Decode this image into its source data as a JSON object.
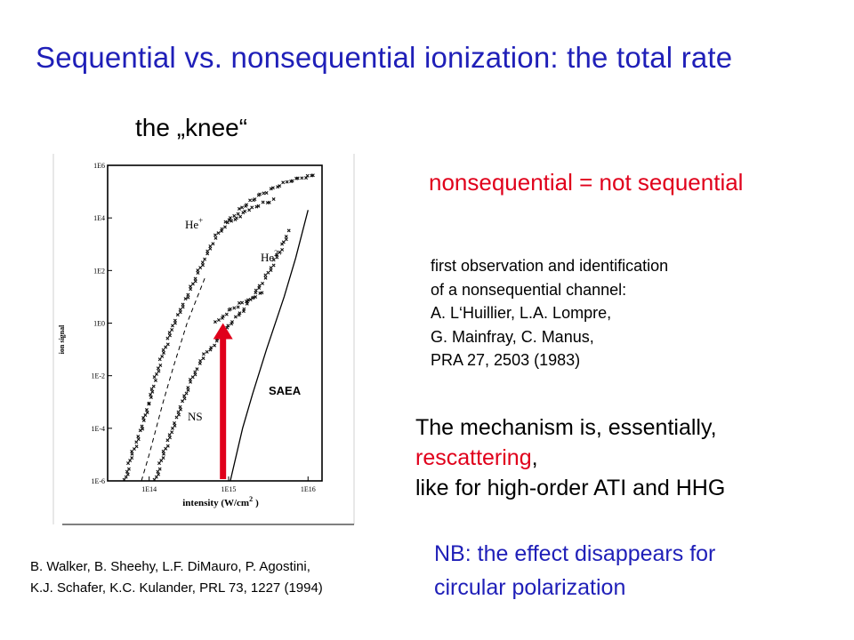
{
  "slide": {
    "title": "Sequential vs. nonsequential ionization: the total rate",
    "knee_label": "the „knee“",
    "nonsequential_note": "nonsequential = not sequential",
    "first_observation": [
      "first observation and identification",
      "of a nonsequential channel:",
      "A. L‘Huillier, L.A. Lompre,",
      "G. Mainfray, C. Manus,",
      "PRA 27, 2503 (1983)"
    ],
    "mechanism": {
      "line1": "The mechanism is, essentially,",
      "line2_highlight": "rescattering",
      "line2_rest": ",",
      "line3": "like for high-order ATI and HHG"
    },
    "nb_note": [
      "NB: the effect disappears for",
      "circular polarization"
    ],
    "citation": [
      "B. Walker, B. Sheehy, L.F. DiMauro, P. Agostini,",
      "K.J. Schafer, K.C. Kulander, PRL 73, 1227 (1994)"
    ]
  },
  "colors": {
    "title_blue": "#1f1fb8",
    "accent_red": "#e0001b"
  },
  "chart_data": {
    "type": "scatter",
    "xscale": "log",
    "yscale": "log",
    "xlim": [
      30000000000000.0,
      1.5e+16
    ],
    "ylim": [
      1e-06,
      1000000.0
    ],
    "xticks": [
      "1E14",
      "1E15",
      "1E16"
    ],
    "yticks": [
      "1E6",
      "1E4",
      "1E2",
      "1E0",
      "1E-2",
      "1E-4",
      "1E-6"
    ],
    "xlabel_main": "intensity (W/cm",
    "xlabel_sup": "2",
    "xlabel_end": ")",
    "ylabel": "ion signal",
    "series_labels": {
      "he_plus": "He",
      "he_plus_sup": "+",
      "he_2plus": "He",
      "he_2plus_sup": "2+",
      "ns": "NS",
      "saea": "SAEA"
    },
    "series": [
      {
        "name": "He+",
        "style": "markers",
        "x": [
          50000000000000.0,
          60000000000000.0,
          70000000000000.0,
          80000000000000.0,
          100000000000000.0,
          120000000000000.0,
          150000000000000.0,
          200000000000000.0,
          300000000000000.0,
          500000000000000.0,
          700000000000000.0,
          1000000000000000.0,
          1500000000000000.0,
          2000000000000000.0,
          3000000000000000.0,
          5000000000000000.0,
          7000000000000000.0,
          1e+16,
          1.3e+16
        ],
        "y": [
          1e-06,
          1e-05,
          3e-05,
          0.0001,
          0.001,
          0.008,
          0.07,
          0.8,
          10,
          300,
          2000,
          8000,
          25000,
          50000,
          100000,
          200000,
          300000,
          400000,
          500000
        ]
      },
      {
        "name": "He+ linear",
        "style": "markers",
        "x": [
          1000000000000000.0,
          1500000000000000.0,
          2000000000000000.0,
          3000000000000000.0,
          4000000000000000.0
        ],
        "y": [
          6000,
          15000,
          25000,
          40000,
          50000
        ]
      },
      {
        "name": "He2+",
        "style": "markers",
        "x": [
          120000000000000.0,
          150000000000000.0,
          200000000000000.0,
          300000000000000.0,
          400000000000000.0,
          500000000000000.0,
          700000000000000.0,
          1000000000000000.0,
          1500000000000000.0,
          2000000000000000.0,
          3000000000000000.0,
          4000000000000000.0,
          5000000000000000.0,
          6000000000000000.0
        ],
        "y": [
          1e-06,
          1e-05,
          0.0001,
          0.003,
          0.02,
          0.06,
          0.2,
          0.8,
          3,
          10,
          60,
          300,
          1200,
          4000
        ]
      },
      {
        "name": "He2+ linear",
        "style": "markers",
        "x": [
          700000000000000.0,
          1000000000000000.0,
          1500000000000000.0,
          2000000000000000.0,
          3000000000000000.0
        ],
        "y": [
          1,
          3,
          6,
          10,
          15
        ]
      },
      {
        "name": "sequential estimate",
        "style": "dashed",
        "x": [
          80000000000000.0,
          100000000000000.0,
          150000000000000.0,
          200000000000000.0,
          300000000000000.0,
          500000000000000.0
        ],
        "y": [
          1e-06,
          1e-05,
          0.001,
          0.02,
          1,
          50
        ]
      },
      {
        "name": "SAEA",
        "style": "solid",
        "x": [
          1050000000000000.0,
          1500000000000000.0,
          2000000000000000.0,
          3000000000000000.0,
          5000000000000000.0,
          7000000000000000.0,
          1e+16
        ],
        "y": [
          1e-06,
          0.0001,
          0.002,
          0.1,
          10,
          300,
          20000
        ]
      }
    ],
    "arrow": {
      "x": 850000000000000.0,
      "y_from": 1e-06,
      "y_to": 1
    }
  }
}
